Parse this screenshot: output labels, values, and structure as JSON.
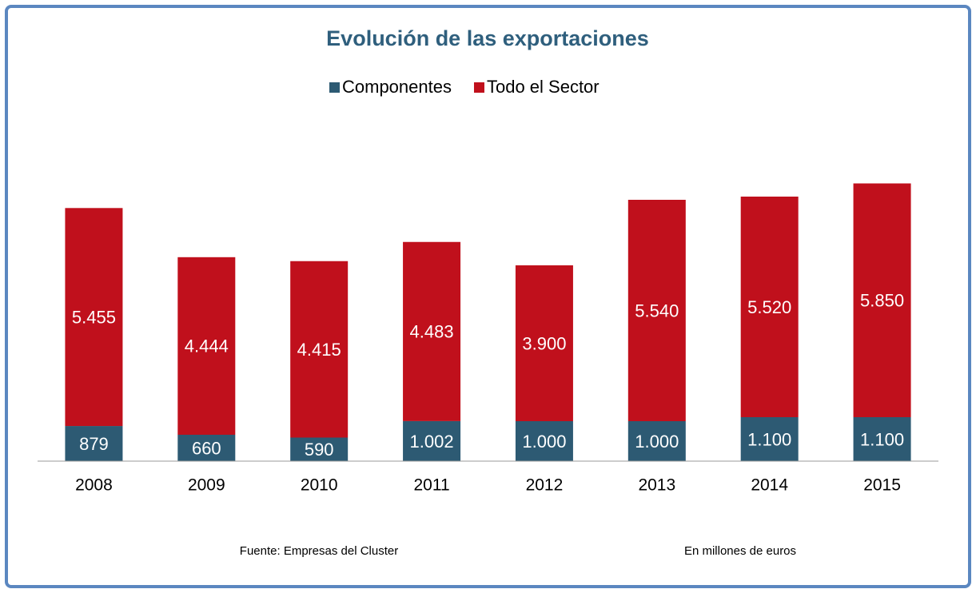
{
  "chart_data": {
    "type": "stacked_bar",
    "title": "Evolución de las exportaciones",
    "categories": [
      "2008",
      "2009",
      "2010",
      "2011",
      "2012",
      "2013",
      "2014",
      "2015"
    ],
    "series": [
      {
        "name": "Componentes",
        "color": "#2d5a73",
        "values": [
          879,
          660,
          590,
          1002,
          1000,
          1000,
          1100,
          1100
        ],
        "value_labels": [
          "879",
          "660",
          "590",
          "1.002",
          "1.000",
          "1.000",
          "1.100",
          "1.100"
        ]
      },
      {
        "name": "Todo el Sector",
        "color": "#c0101c",
        "values": [
          5455,
          4444,
          4415,
          4483,
          3900,
          5540,
          5520,
          5850
        ],
        "value_labels": [
          "5.455",
          "4.444",
          "4.415",
          "4.483",
          "3.900",
          "5.540",
          "5.520",
          "5.850"
        ]
      }
    ],
    "ylim": [
      0,
      7000
    ],
    "annotations": [
      "Fuente: Empresas del Cluster",
      "En millones de euros"
    ]
  }
}
